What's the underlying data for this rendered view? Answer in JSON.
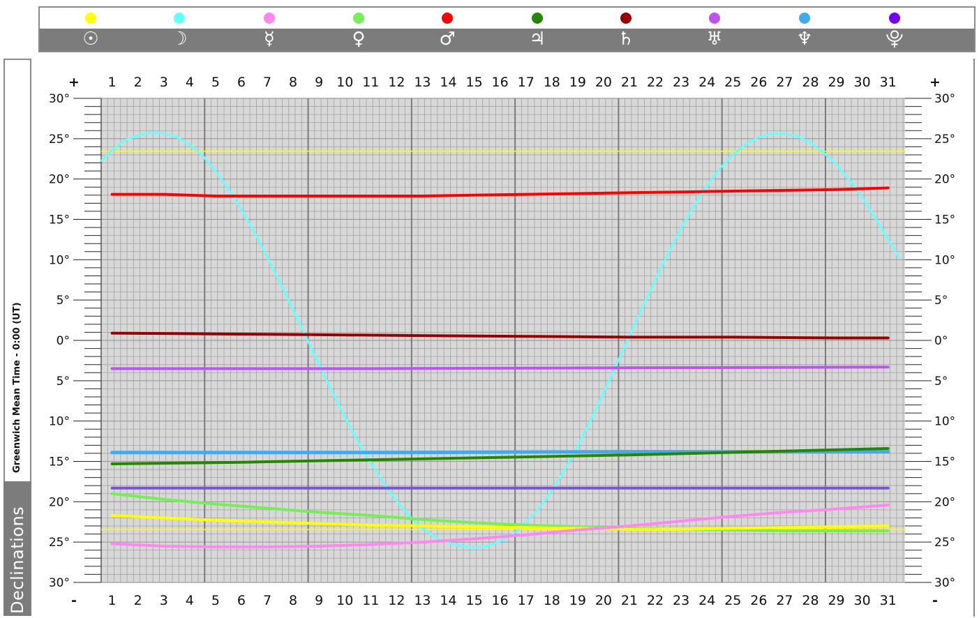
{
  "legend": {
    "items": [
      {
        "name": "sun-icon",
        "symbol": "☉",
        "color": "#ffff00"
      },
      {
        "name": "moon-icon",
        "symbol": "☽",
        "color": "#66ffff"
      },
      {
        "name": "mercury-icon",
        "symbol": "☿",
        "color": "#ff88ee"
      },
      {
        "name": "venus-icon",
        "symbol": "♀",
        "color": "#77ee55"
      },
      {
        "name": "mars-icon",
        "symbol": "♂",
        "color": "#ff0000"
      },
      {
        "name": "jupiter-icon",
        "symbol": "♃",
        "color": "#228800"
      },
      {
        "name": "saturn-icon",
        "symbol": "♄",
        "color": "#990000"
      },
      {
        "name": "uranus-icon",
        "symbol": "♅",
        "color": "#bb55ee"
      },
      {
        "name": "neptune-icon",
        "symbol": "♆",
        "color": "#44aaee"
      },
      {
        "name": "pluto-icon",
        "symbol": "⯓",
        "color": "#7700ee"
      }
    ]
  },
  "side": {
    "time_label": "Greenwich Mean Time - 0:00 (UT)",
    "section_label": "Declinations"
  },
  "chart_data": {
    "type": "line",
    "x_ticks": [
      "1",
      "2",
      "3",
      "4",
      "5",
      "6",
      "7",
      "8",
      "9",
      "10",
      "11",
      "12",
      "13",
      "14",
      "15",
      "16",
      "17",
      "18",
      "19",
      "20",
      "21",
      "22",
      "23",
      "24",
      "25",
      "26",
      "27",
      "28",
      "29",
      "30",
      "31"
    ],
    "y_tick_labels": [
      "30°",
      "25°",
      "20°",
      "15°",
      "10°",
      "5°",
      "0°",
      "5°",
      "10°",
      "15°",
      "20°",
      "25°",
      "30°"
    ],
    "y_ticks": [
      30,
      25,
      20,
      15,
      10,
      5,
      0,
      -5,
      -10,
      -15,
      -20,
      -25,
      -30
    ],
    "top_sign": "+",
    "bottom_sign": "-",
    "xlim": [
      0.6,
      31.4
    ],
    "ylim": [
      -30,
      30
    ],
    "grid": true,
    "reference_lines": [
      {
        "y": 23.44,
        "color": "#ffff00"
      },
      {
        "y": -23.44,
        "color": "#ffff00"
      }
    ],
    "series": [
      {
        "symbol": "☽",
        "color": "#66ffff",
        "width": 3,
        "points": [
          [
            0.6,
            22.3
          ],
          [
            1,
            23.6
          ],
          [
            1.5,
            24.8
          ],
          [
            2,
            25.4
          ],
          [
            2.5,
            25.8
          ],
          [
            3,
            25.7
          ],
          [
            3.5,
            25.2
          ],
          [
            4,
            24.3
          ],
          [
            4.5,
            22.9
          ],
          [
            5,
            21.0
          ],
          [
            5.5,
            18.7
          ],
          [
            6,
            16.2
          ],
          [
            6.5,
            13.4
          ],
          [
            7,
            10.3
          ],
          [
            7.5,
            7.1
          ],
          [
            8,
            3.8
          ],
          [
            8.5,
            0.4
          ],
          [
            9,
            -3.0
          ],
          [
            9.5,
            -6.3
          ],
          [
            10,
            -9.5
          ],
          [
            10.5,
            -12.5
          ],
          [
            11,
            -15.2
          ],
          [
            11.5,
            -17.7
          ],
          [
            12,
            -19.9
          ],
          [
            12.5,
            -21.8
          ],
          [
            13,
            -23.3
          ],
          [
            13.5,
            -24.4
          ],
          [
            14,
            -25.1
          ],
          [
            14.5,
            -25.5
          ],
          [
            15,
            -25.7
          ],
          [
            15.5,
            -25.5
          ],
          [
            16,
            -24.9
          ],
          [
            16.5,
            -24.0
          ],
          [
            17,
            -22.6
          ],
          [
            17.5,
            -20.8
          ],
          [
            18,
            -18.6
          ],
          [
            18.5,
            -16.0
          ],
          [
            19,
            -13.1
          ],
          [
            19.5,
            -9.9
          ],
          [
            20,
            -6.5
          ],
          [
            20.5,
            -3.0
          ],
          [
            21,
            0.5
          ],
          [
            21.5,
            4.1
          ],
          [
            22,
            7.5
          ],
          [
            22.5,
            10.8
          ],
          [
            23,
            13.9
          ],
          [
            23.5,
            16.7
          ],
          [
            24,
            19.2
          ],
          [
            24.5,
            21.3
          ],
          [
            25,
            23.0
          ],
          [
            25.5,
            24.3
          ],
          [
            26,
            25.2
          ],
          [
            26.5,
            25.6
          ],
          [
            27,
            25.6
          ],
          [
            27.5,
            25.3
          ],
          [
            28,
            24.5
          ],
          [
            28.5,
            23.3
          ],
          [
            29,
            21.8
          ],
          [
            29.5,
            19.9
          ],
          [
            30,
            17.7
          ],
          [
            30.5,
            15.2
          ],
          [
            31,
            12.5
          ],
          [
            31.4,
            10.4
          ]
        ]
      },
      {
        "symbol": "♂",
        "color": "#ff0000",
        "width": 4,
        "points": [
          [
            1,
            18.1
          ],
          [
            3,
            18.1
          ],
          [
            5,
            17.9
          ],
          [
            7,
            17.9
          ],
          [
            9,
            17.9
          ],
          [
            11,
            17.9
          ],
          [
            13,
            17.9
          ],
          [
            15,
            18.0
          ],
          [
            17,
            18.1
          ],
          [
            19,
            18.2
          ],
          [
            21,
            18.3
          ],
          [
            23,
            18.4
          ],
          [
            25,
            18.5
          ],
          [
            27,
            18.6
          ],
          [
            29,
            18.7
          ],
          [
            31,
            18.9
          ]
        ]
      },
      {
        "symbol": "♄",
        "color": "#990000",
        "width": 4,
        "points": [
          [
            1,
            0.9
          ],
          [
            5,
            0.8
          ],
          [
            9,
            0.7
          ],
          [
            13,
            0.6
          ],
          [
            17,
            0.5
          ],
          [
            21,
            0.4
          ],
          [
            25,
            0.4
          ],
          [
            29,
            0.3
          ],
          [
            31,
            0.3
          ]
        ]
      },
      {
        "symbol": "♅",
        "color": "#bb55ee",
        "width": 4,
        "points": [
          [
            1,
            -3.5
          ],
          [
            11,
            -3.5
          ],
          [
            21,
            -3.4
          ],
          [
            31,
            -3.3
          ]
        ]
      },
      {
        "symbol": "♆",
        "color": "#44aaee",
        "width": 5,
        "points": [
          [
            1,
            -13.9
          ],
          [
            11,
            -13.9
          ],
          [
            21,
            -13.8
          ],
          [
            31,
            -13.8
          ]
        ]
      },
      {
        "symbol": "♃",
        "color": "#228800",
        "width": 4,
        "points": [
          [
            1,
            -15.3
          ],
          [
            6,
            -15.1
          ],
          [
            11,
            -14.8
          ],
          [
            16,
            -14.5
          ],
          [
            21,
            -14.2
          ],
          [
            26,
            -13.8
          ],
          [
            31,
            -13.4
          ]
        ]
      },
      {
        "symbol": "⯓",
        "color": "#7755cc",
        "width": 4,
        "points": [
          [
            1,
            -18.3
          ],
          [
            11,
            -18.3
          ],
          [
            21,
            -18.3
          ],
          [
            31,
            -18.3
          ]
        ]
      },
      {
        "symbol": "♀",
        "color": "#77ee55",
        "width": 4,
        "points": [
          [
            1,
            -19.0
          ],
          [
            3,
            -19.7
          ],
          [
            5,
            -20.3
          ],
          [
            7,
            -20.8
          ],
          [
            9,
            -21.3
          ],
          [
            11,
            -21.7
          ],
          [
            13,
            -22.2
          ],
          [
            15,
            -22.6
          ],
          [
            17,
            -22.9
          ],
          [
            19,
            -23.1
          ],
          [
            21,
            -23.3
          ],
          [
            23,
            -23.4
          ],
          [
            25,
            -23.5
          ],
          [
            27,
            -23.6
          ],
          [
            29,
            -23.6
          ],
          [
            31,
            -23.6
          ]
        ]
      },
      {
        "symbol": "☉",
        "color": "#ffff00",
        "width": 4,
        "points": [
          [
            1,
            -21.7
          ],
          [
            3,
            -22.0
          ],
          [
            5,
            -22.3
          ],
          [
            7,
            -22.5
          ],
          [
            9,
            -22.7
          ],
          [
            11,
            -22.9
          ],
          [
            13,
            -23.0
          ],
          [
            15,
            -23.1
          ],
          [
            17,
            -23.2
          ],
          [
            19,
            -23.3
          ],
          [
            21,
            -23.4
          ],
          [
            23,
            -23.4
          ],
          [
            25,
            -23.3
          ],
          [
            27,
            -23.2
          ],
          [
            29,
            -23.1
          ],
          [
            31,
            -23.0
          ]
        ]
      },
      {
        "symbol": "☿",
        "color": "#ff88ee",
        "width": 4,
        "points": [
          [
            1,
            -25.2
          ],
          [
            3,
            -25.5
          ],
          [
            5,
            -25.6
          ],
          [
            7,
            -25.6
          ],
          [
            9,
            -25.5
          ],
          [
            11,
            -25.3
          ],
          [
            13,
            -25.0
          ],
          [
            15,
            -24.6
          ],
          [
            17,
            -24.1
          ],
          [
            19,
            -23.5
          ],
          [
            21,
            -23.0
          ],
          [
            23,
            -22.4
          ],
          [
            25,
            -21.8
          ],
          [
            27,
            -21.3
          ],
          [
            29,
            -20.9
          ],
          [
            31,
            -20.4
          ]
        ]
      }
    ]
  }
}
